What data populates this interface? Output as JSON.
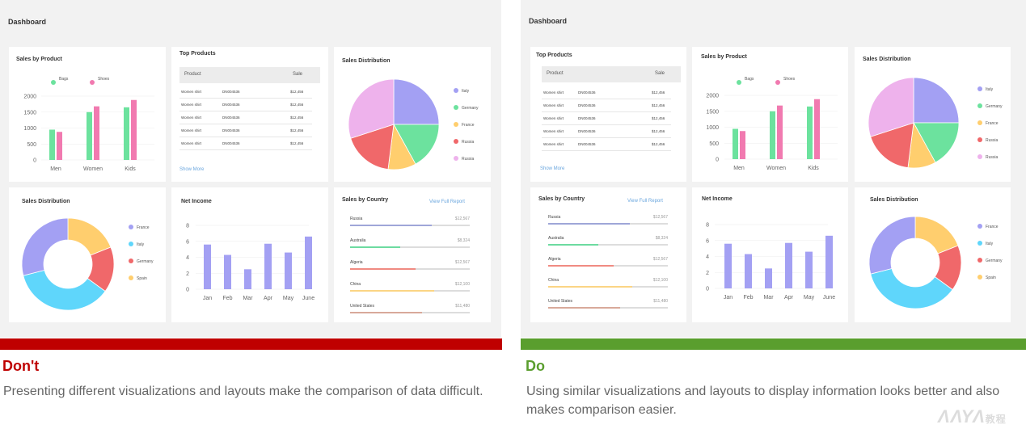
{
  "dashboard_title": "Dashboard",
  "colors": {
    "dont_red": "#bf0000",
    "do_green": "#5a9e2e",
    "purple": "#a3a0f3",
    "green": "#6ce29e",
    "pink": "#f17ab0",
    "yellow": "#ffce6e",
    "red": "#f0686a",
    "blue": "#5fd6fb",
    "lilac": "#eeb2ec"
  },
  "cards": {
    "sales_by_product": "Sales by Product",
    "top_products": "Top Products",
    "sales_distribution": "Sales Distribution",
    "net_income": "Net Income",
    "sales_by_country": "Sales by Country"
  },
  "legend": {
    "bags": "Bags",
    "shoes": "Shoes"
  },
  "top_products": {
    "col_product": "Product",
    "col_sale": "Sale",
    "rows": [
      {
        "name": "Women shirt",
        "code": "DN004536",
        "sale": "$12,456"
      },
      {
        "name": "Women shirt",
        "code": "DN004536",
        "sale": "$12,456"
      },
      {
        "name": "Women shirt",
        "code": "DN004536",
        "sale": "$12,456"
      },
      {
        "name": "Women shirt",
        "code": "DN004536",
        "sale": "$12,456"
      },
      {
        "name": "Women shirt",
        "code": "DN004536",
        "sale": "$12,456"
      }
    ],
    "show_more": "Show More"
  },
  "sales_by_country": {
    "view_full": "View Full Report",
    "rows": [
      {
        "country": "Russia",
        "value": "$12,567",
        "pct": 0.68,
        "color": "#9fa6d8"
      },
      {
        "country": "Australia",
        "value": "$8,324",
        "pct": 0.42,
        "color": "#6ddba0"
      },
      {
        "country": "Algeria",
        "value": "$12,567",
        "pct": 0.55,
        "color": "#f08b82"
      },
      {
        "country": "China",
        "value": "$12,100",
        "pct": 0.7,
        "color": "#fbd585"
      },
      {
        "country": "United States",
        "value": "$11,480",
        "pct": 0.6,
        "color": "#d8a99a"
      }
    ]
  },
  "dont": {
    "heading": "Don't",
    "text": "Presenting different visualizations and layouts make the comparison of data difficult."
  },
  "do": {
    "heading": "Do",
    "text": "Using similar visualizations and layouts to display information looks better and also makes comparison easier."
  },
  "watermark": {
    "letters": "ΛΛΥΛ",
    "suffix": "教程"
  },
  "chart_data": [
    {
      "type": "bar",
      "title": "Sales by Product",
      "categories": [
        "Men",
        "Women",
        "Kids"
      ],
      "series": [
        {
          "name": "Bags",
          "values": [
            950,
            1500,
            1650
          ],
          "color": "#6ce29e"
        },
        {
          "name": "Shoes",
          "values": [
            880,
            1680,
            1880
          ],
          "color": "#f17ab0"
        }
      ],
      "yticks": [
        "2000",
        "1500",
        "1000",
        "500",
        "0"
      ],
      "ylim": [
        0,
        2000
      ]
    },
    {
      "type": "bar",
      "title": "Net Income",
      "categories": [
        "Jan",
        "Feb",
        "Mar",
        "Apr",
        "May",
        "June"
      ],
      "values": [
        5.6,
        4.3,
        2.5,
        5.7,
        4.6,
        6.6
      ],
      "yticks": [
        "8",
        "6",
        "4",
        "2",
        "0"
      ],
      "ylim": [
        0,
        8
      ]
    },
    {
      "type": "pie",
      "title": "Sales Distribution",
      "labels": [
        "Italy",
        "Germany",
        "France",
        "Russia",
        "Russia"
      ],
      "values": [
        25,
        17,
        10,
        18,
        30
      ],
      "colors": [
        "#a3a0f3",
        "#6ce29e",
        "#ffce6e",
        "#f0686a",
        "#eeb2ec"
      ]
    },
    {
      "type": "pie",
      "title": "Sales Distribution",
      "donut": true,
      "labels": [
        "France",
        "Italy",
        "Germany",
        "Spain"
      ],
      "values": [
        19,
        16,
        36,
        29
      ],
      "colors": [
        "#ffce6e",
        "#f0686a",
        "#5fd6fb",
        "#a3a0f3"
      ],
      "legend_labels": [
        "France",
        "Italy",
        "Germany",
        "Spain"
      ],
      "legend_colors": [
        "#a3a0f3",
        "#5fd6fb",
        "#f0686a",
        "#ffce6e"
      ]
    }
  ]
}
